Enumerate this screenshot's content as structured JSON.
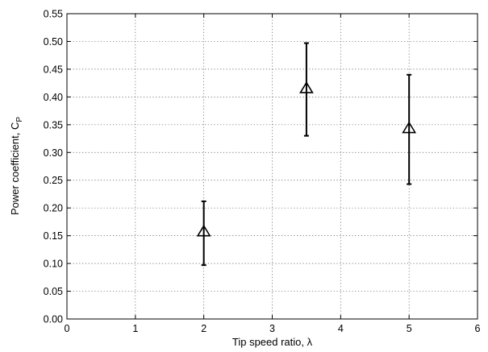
{
  "chart_data": {
    "type": "scatter",
    "xlabel": "Tip speed ratio, λ",
    "ylabel_main": "Power coefficient, C",
    "ylabel_sub": "P",
    "xlim": [
      0,
      6
    ],
    "ylim": [
      0,
      0.55
    ],
    "xticks": [
      0,
      1,
      2,
      3,
      4,
      5,
      6
    ],
    "yticks": [
      0,
      0.05,
      0.1,
      0.15,
      0.2,
      0.25,
      0.3,
      0.35,
      0.4,
      0.45,
      0.5,
      0.55
    ],
    "xtick_labels": [
      "0",
      "1",
      "2",
      "3",
      "4",
      "5",
      "6"
    ],
    "ytick_labels": [
      "0.00",
      "0.05",
      "0.10",
      "0.15",
      "0.20",
      "0.25",
      "0.30",
      "0.35",
      "0.40",
      "0.45",
      "0.50",
      "0.55"
    ],
    "grid": true,
    "marker": "triangle-hollow",
    "colors": {
      "mark": "#000000",
      "grid": "#555555"
    },
    "points": [
      {
        "x": 2,
        "y": 0.157,
        "y_low": 0.097,
        "y_high": 0.212
      },
      {
        "x": 3.5,
        "y": 0.415,
        "y_low": 0.33,
        "y_high": 0.497
      },
      {
        "x": 5,
        "y": 0.343,
        "y_low": 0.243,
        "y_high": 0.44
      }
    ]
  }
}
